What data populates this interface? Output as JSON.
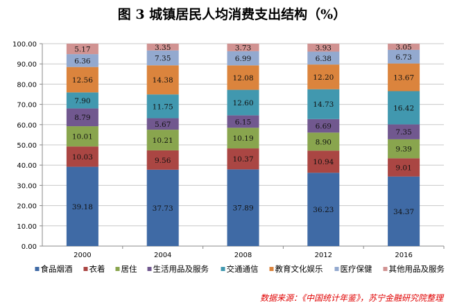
{
  "chart_data": {
    "type": "bar",
    "stacked": true,
    "title": "图 3  城镇居民人均消费支出结构（%）",
    "xlabel": "",
    "ylabel": "",
    "ylim": [
      0,
      100
    ],
    "yticks": [
      "0.00",
      "10.00",
      "20.00",
      "30.00",
      "40.00",
      "50.00",
      "60.00",
      "70.00",
      "80.00",
      "90.00",
      "100.00"
    ],
    "grid": true,
    "legend_position": "bottom",
    "categories": [
      "2000",
      "2004",
      "2008",
      "2012",
      "2016"
    ],
    "series": [
      {
        "name": "食品烟酒",
        "color": "#3F6AA5",
        "values": [
          39.18,
          37.73,
          37.89,
          36.23,
          34.37
        ]
      },
      {
        "name": "衣着",
        "color": "#AA4643",
        "values": [
          10.03,
          9.56,
          10.37,
          10.94,
          9.01
        ]
      },
      {
        "name": "居住",
        "color": "#89A54E",
        "values": [
          10.01,
          10.21,
          10.19,
          8.9,
          9.39
        ]
      },
      {
        "name": "生活用品及服务",
        "color": "#71588F",
        "values": [
          8.79,
          5.67,
          6.15,
          6.69,
          7.35
        ]
      },
      {
        "name": "交通通信",
        "color": "#4198AF",
        "values": [
          7.9,
          11.75,
          12.6,
          14.73,
          16.42
        ]
      },
      {
        "name": "教育文化娱乐",
        "color": "#DB843D",
        "values": [
          12.56,
          14.38,
          12.08,
          12.2,
          13.67
        ]
      },
      {
        "name": "医疗保健",
        "color": "#93A9CF",
        "values": [
          6.36,
          7.35,
          6.99,
          6.38,
          6.73
        ]
      },
      {
        "name": "其他用品及服务",
        "color": "#D19392",
        "values": [
          5.17,
          3.35,
          3.73,
          3.93,
          3.05
        ]
      }
    ]
  },
  "source": "数据来源：《中国统计年鉴》，苏宁金融研究院整理"
}
